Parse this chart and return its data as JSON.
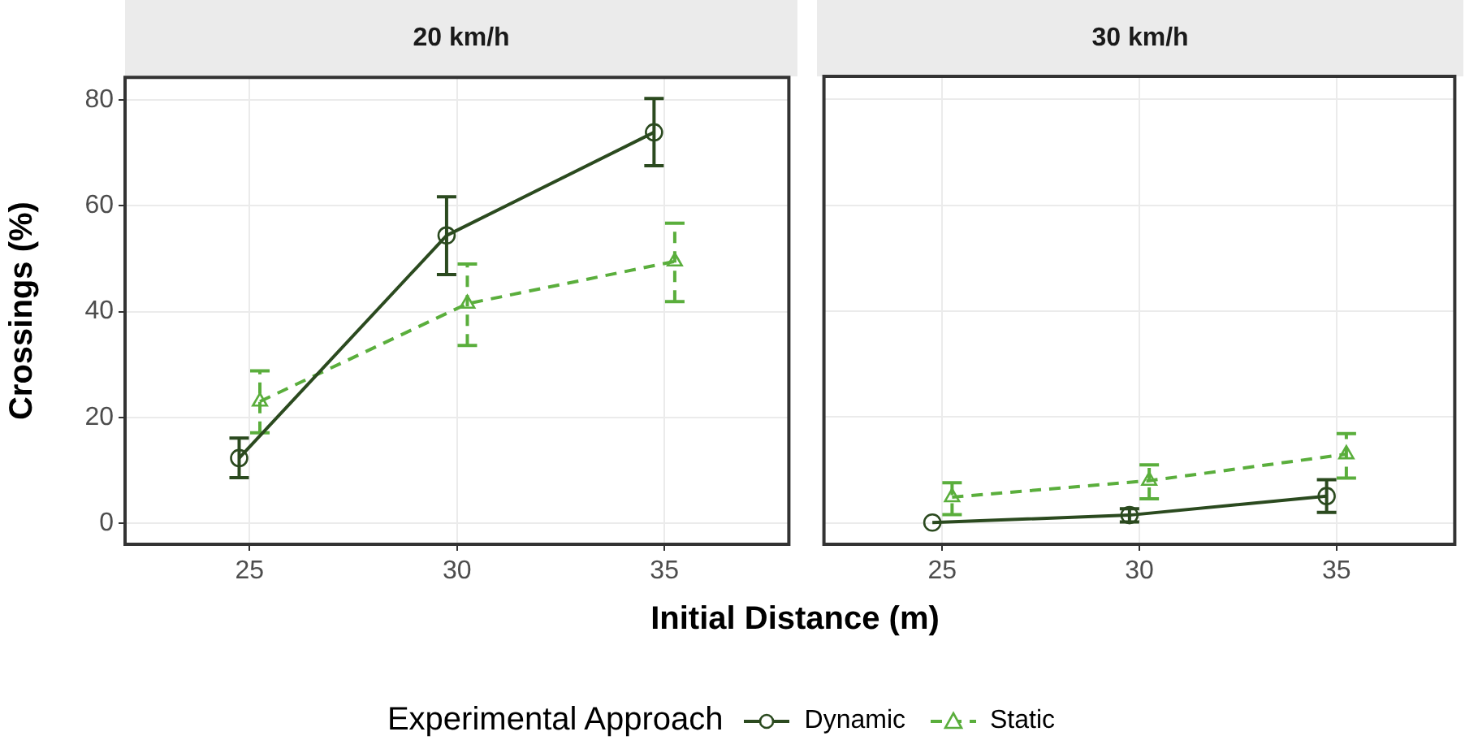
{
  "chart_data": [
    {
      "type": "line",
      "title": "20 km/h",
      "xlabel": "Initial Distance (m)",
      "ylabel": "Crossings (%)",
      "legend_title": "Experimental Approach",
      "legend": "bottom",
      "grid": true,
      "xlim": [
        22,
        38
      ],
      "xticks": [
        25,
        30,
        35
      ],
      "ylim": [
        -4,
        84.3
      ],
      "yticks": [
        0,
        20,
        40,
        60,
        80
      ],
      "series": [
        {
          "name": "Dynamic",
          "color": "#2b4a1f",
          "marker": "circle",
          "line_style": "solid",
          "x": [
            24.75,
            29.75,
            34.75
          ],
          "values": [
            12.3,
            54.4,
            73.9
          ],
          "errors": [
            [
              8.6,
              16.1
            ],
            [
              47.0,
              61.7
            ],
            [
              67.6,
              80.3
            ]
          ]
        },
        {
          "name": "Static",
          "color": "#5aae3c",
          "marker": "triangle",
          "line_style": "dashed",
          "x": [
            25.25,
            30.25,
            35.25
          ],
          "values": [
            23.0,
            41.5,
            49.5
          ],
          "errors": [
            [
              17.1,
              28.8
            ],
            [
              33.6,
              49.0
            ],
            [
              41.9,
              56.7
            ]
          ]
        }
      ]
    },
    {
      "type": "line",
      "title": "30 km/h",
      "grid": true,
      "tick_labels": "x",
      "xlim": [
        22,
        38
      ],
      "xticks": [
        25,
        30,
        35
      ],
      "ylim": [
        -4,
        84.3
      ],
      "yticks": [
        0,
        20,
        40,
        60,
        80
      ],
      "series": [
        {
          "name": "Dynamic",
          "color": "#2b4a1f",
          "marker": "circle",
          "line_style": "solid",
          "x": [
            24.75,
            29.75,
            34.75
          ],
          "values": [
            0.1,
            1.5,
            5.1
          ],
          "errors": [
            null,
            [
              0.2,
              2.7
            ],
            [
              2.0,
              8.2
            ]
          ]
        },
        {
          "name": "Static",
          "color": "#5aae3c",
          "marker": "triangle",
          "line_style": "dashed",
          "x": [
            25.25,
            30.25,
            35.25
          ],
          "values": [
            4.9,
            8.0,
            13.0
          ],
          "errors": [
            [
              1.6,
              7.6
            ],
            [
              4.6,
              11.0
            ],
            [
              8.5,
              16.9
            ]
          ]
        }
      ]
    }
  ]
}
